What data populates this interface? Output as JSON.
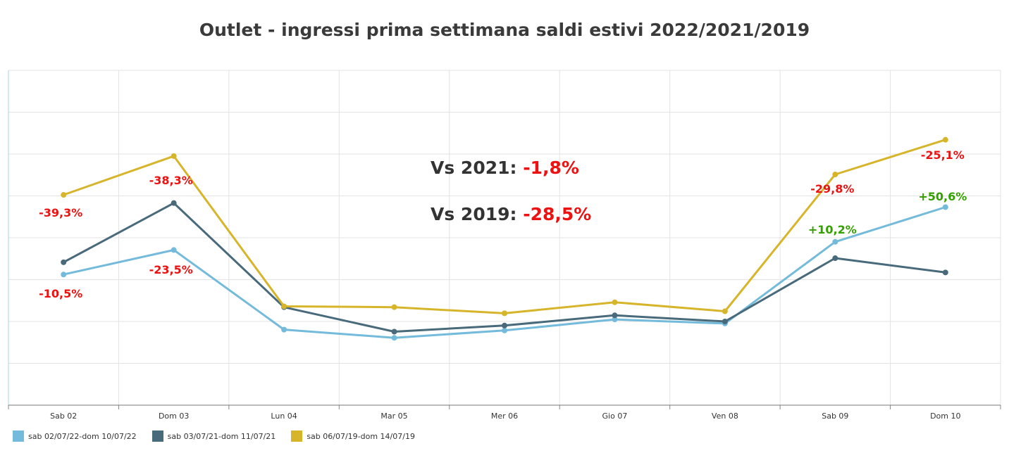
{
  "chart_data": {
    "type": "line",
    "title": "Outlet - ingressi prima settimana saldi estivi 2022/2021/2019",
    "categories": [
      "Sab 02",
      "Dom 03",
      "Lun 04",
      "Mar 05",
      "Mer 06",
      "Gio 07",
      "Ven 08",
      "Sab 09",
      "Dom 10"
    ],
    "ylim": [
      0,
      8.2
    ],
    "grid": true,
    "legend_position": "bottom-left",
    "series": [
      {
        "name": "sab 02/07/22-dom 10/07/22",
        "color": "#74bbdb",
        "values": [
          3.2,
          3.8,
          1.85,
          1.65,
          1.83,
          2.1,
          2.0,
          4.0,
          4.85
        ]
      },
      {
        "name": "sab 03/07/21-dom 11/07/21",
        "color": "#486a7b",
        "values": [
          3.5,
          4.95,
          2.4,
          1.8,
          1.95,
          2.2,
          2.05,
          3.6,
          3.25
        ]
      },
      {
        "name": "sab 06/07/19-dom 14/07/19",
        "color": "#d7b52b",
        "values": [
          5.15,
          6.1,
          2.42,
          2.4,
          2.25,
          2.52,
          2.3,
          5.65,
          6.5
        ]
      }
    ],
    "annotations": [
      {
        "text": "-39,3%",
        "color": "#ee1111"
      },
      {
        "text": "-10,5%",
        "color": "#ee1111"
      },
      {
        "text": "-38,3%",
        "color": "#ee1111"
      },
      {
        "text": "-23,5%",
        "color": "#ee1111"
      },
      {
        "text": "-29,8%",
        "color": "#ee1111"
      },
      {
        "text": "+10,2%",
        "color": "#33a000"
      },
      {
        "text": "-25,1%",
        "color": "#ee1111"
      },
      {
        "text": "+50,6%",
        "color": "#33a000"
      }
    ],
    "callouts": [
      {
        "label": "Vs 2021:",
        "value": "-1,8%"
      },
      {
        "label": "Vs 2019:",
        "value": "-28,5%"
      }
    ]
  }
}
